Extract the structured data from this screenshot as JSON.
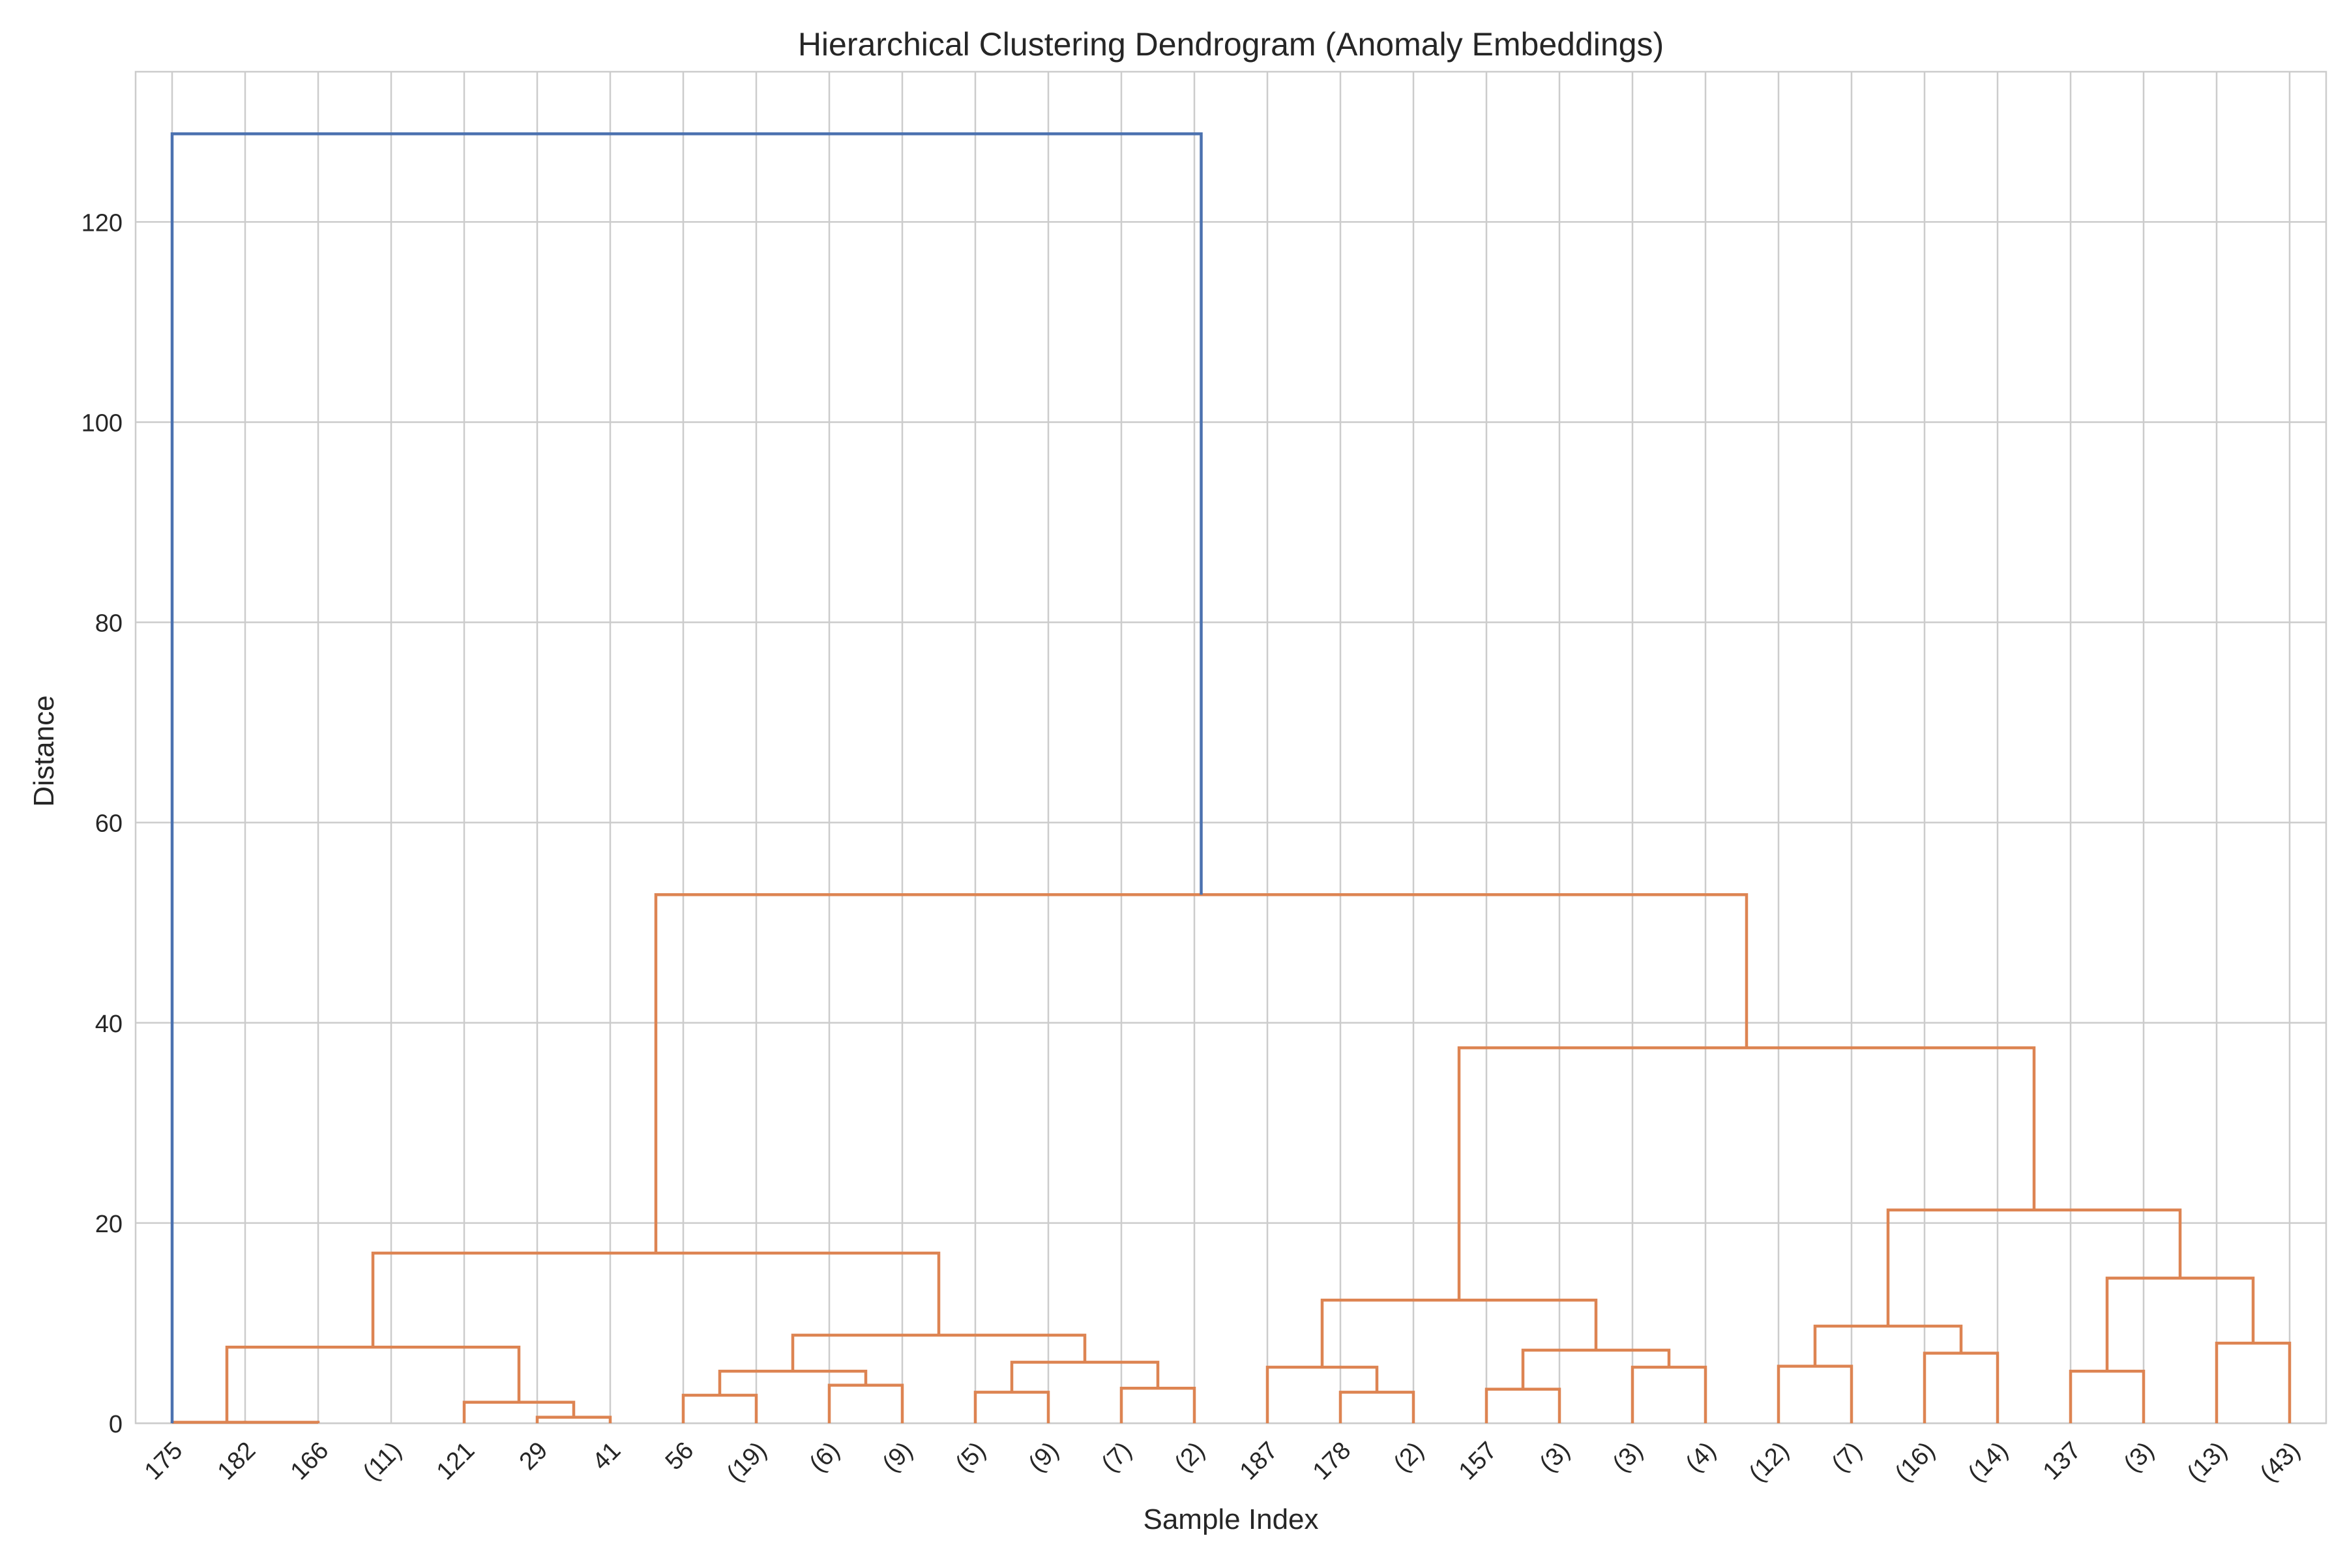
{
  "chart_data": {
    "type": "dendrogram",
    "title": "Hierarchical Clustering Dendrogram (Anomaly Embeddings)",
    "xlabel": "Sample Index",
    "ylabel": "Distance",
    "ylim": [
      0,
      135
    ],
    "yticks": [
      0,
      20,
      40,
      60,
      80,
      100,
      120
    ],
    "grid": true,
    "leaf_labels": [
      "175",
      "182",
      "166",
      "(11)",
      "121",
      "29",
      "41",
      "56",
      "(19)",
      "(6)",
      "(9)",
      "(5)",
      "(9)",
      "(7)",
      "(2)",
      "187",
      "178",
      "(2)",
      "157",
      "(3)",
      "(3)",
      "(4)",
      "(12)",
      "(7)",
      "(16)",
      "(14)",
      "137",
      "(3)",
      "(13)",
      "(43)"
    ],
    "colors": {
      "root_link": "#4c72b0",
      "cluster_link": "#dd8452",
      "grid": "#cccccc",
      "text": "#262626"
    },
    "merges": [
      {
        "left": 1,
        "right": 2,
        "height": 0.1,
        "color": "cluster"
      },
      {
        "left": 2,
        "right": 3,
        "height": 0.1,
        "color": "cluster"
      },
      {
        "left": 6,
        "right": 7,
        "height": 0.6,
        "color": "cluster"
      },
      {
        "left": 5,
        "right": 6.5,
        "height": 2.1,
        "color": "cluster"
      },
      {
        "left": 1.75,
        "right": 5.75,
        "height": 7.6,
        "color": "cluster"
      },
      {
        "left": 8,
        "right": 9,
        "height": 2.8,
        "color": "cluster"
      },
      {
        "left": 10,
        "right": 11,
        "height": 3.8,
        "color": "cluster"
      },
      {
        "left": 8.5,
        "right": 10.5,
        "height": 5.2,
        "color": "cluster"
      },
      {
        "left": 12,
        "right": 13,
        "height": 3.1,
        "color": "cluster"
      },
      {
        "left": 14,
        "right": 15,
        "height": 3.5,
        "color": "cluster"
      },
      {
        "left": 12.5,
        "right": 14.5,
        "height": 6.1,
        "color": "cluster"
      },
      {
        "left": 9.5,
        "right": 13.5,
        "height": 8.8,
        "color": "cluster"
      },
      {
        "left": 3.75,
        "right": 11.5,
        "height": 17.0,
        "color": "cluster"
      },
      {
        "left": 17,
        "right": 18,
        "height": 3.1,
        "color": "cluster"
      },
      {
        "left": 16,
        "right": 17.5,
        "height": 5.6,
        "color": "cluster"
      },
      {
        "left": 19,
        "right": 20,
        "height": 3.4,
        "color": "cluster"
      },
      {
        "left": 21,
        "right": 22,
        "height": 5.6,
        "color": "cluster"
      },
      {
        "left": 19.5,
        "right": 21.5,
        "height": 7.3,
        "color": "cluster"
      },
      {
        "left": 16.75,
        "right": 20.5,
        "height": 12.3,
        "color": "cluster"
      },
      {
        "left": 23,
        "right": 24,
        "height": 5.7,
        "color": "cluster"
      },
      {
        "left": 25,
        "right": 26,
        "height": 7.0,
        "color": "cluster"
      },
      {
        "left": 23.5,
        "right": 25.5,
        "height": 9.7,
        "color": "cluster"
      },
      {
        "left": 27,
        "right": 28,
        "height": 5.2,
        "color": "cluster"
      },
      {
        "left": 29,
        "right": 30,
        "height": 8.0,
        "color": "cluster"
      },
      {
        "left": 27.5,
        "right": 29.5,
        "height": 14.5,
        "color": "cluster"
      },
      {
        "left": 24.5,
        "right": 28.5,
        "height": 21.3,
        "color": "cluster"
      },
      {
        "left": 18.625,
        "right": 26.5,
        "height": 37.5,
        "color": "cluster"
      },
      {
        "left": 7.625,
        "right": 22.5625,
        "height": 52.8,
        "color": "cluster"
      },
      {
        "left": 1,
        "right": 15.09375,
        "height": 128.8,
        "color": "root"
      }
    ]
  }
}
